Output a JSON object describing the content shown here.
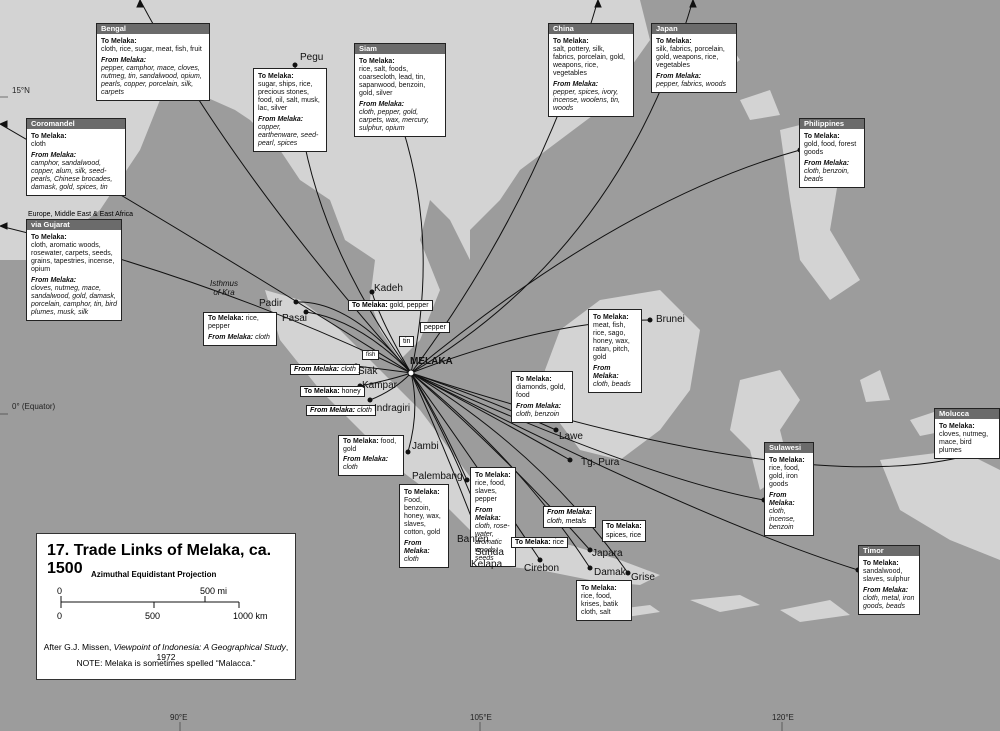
{
  "map": {
    "title": "17. Trade Links of Melaka, ca. 1500",
    "projection": "Azimuthal Equidistant Projection",
    "scale": {
      "mi_zero": "0",
      "mi_mark": "500 mi",
      "km_zero": "0",
      "km_mid": "500",
      "km_end": "1000 km"
    },
    "source": "After G.J. Missen, Viewpoint of Indonesia: A Geographical Study, 1972",
    "source_prefix": "After G.J. Missen, ",
    "source_italic": "Viewpoint of Indonesia: A Geographical Study",
    "source_suffix": ", 1972",
    "note": "NOTE: Melaka is sometimes spelled “Malacca.”",
    "graticule": {
      "lat15": "15°N",
      "equator": "0° (Equator)",
      "lon90": "90°E",
      "lon105": "105°E",
      "lon120": "120°E"
    },
    "hub": "MELAKA",
    "region_label": "Isthmus of Kra",
    "region_label_1": "Isthmus",
    "region_label_2": "of Kra",
    "colors": {
      "sea": "#9c9c9c",
      "land": "#d3d3d3",
      "box_header": "#6b6b6b",
      "route": "#111111"
    }
  },
  "boxes": {
    "bengal": {
      "name": "Bengal",
      "to_label": "To Melaka:",
      "to": "cloth, rice, sugar, meat, fish, fruit",
      "from_label": "From Melaka:",
      "from": "pepper, camphor, mace, cloves, nutmeg, tin, sandalwood, opium, pearls, copper, porcelain, silk, carpets"
    },
    "coromandel": {
      "name": "Coromandel",
      "to_label": "To Melaka:",
      "to": "cloth",
      "from_label": "From Melaka:",
      "from": "camphor, sandalwood, copper, alum, silk, seed-pearls, Chinese brocades, damask, gold, spices, tin"
    },
    "gujarat": {
      "name_top": "Europe, Middle East & East Africa",
      "name": "via Gujarat",
      "to_label": "To Melaka:",
      "to": "cloth, aromatic woods, rosewater, carpets, seeds, grains, tapestries, incense, opium",
      "from_label": "From Melaka:",
      "from": "cloves, nutmeg, mace, sandalwood, gold, damask, porcelain, camphor, tin, bird plumes, musk, silk"
    },
    "pegu": {
      "to_label": "To Melaka:",
      "to": "sugar, ships, rice, precious stones, food, oil, salt, musk, lac, silver",
      "from_label": "From Melaka:",
      "from": "copper, earthenware, seed-pearl, spices"
    },
    "siam": {
      "name": "Siam",
      "to_label": "To Melaka:",
      "to": "rice, salt, foods, coarsecloth, lead, tin, sapanwood, benzoin, gold, silver",
      "from_label": "From Melaka:",
      "from": "cloth, pepper, gold, carpets, wax, mercury, sulphur, opium"
    },
    "china": {
      "name": "China",
      "to_label": "To Melaka:",
      "to": "salt, pottery, silk, fabrics, porcelain, gold, weapons, rice, vegetables",
      "from_label": "From Melaka:",
      "from": "pepper, spices, ivory, incense, woolens, tin, woods"
    },
    "japan": {
      "name": "Japan",
      "to_label": "To Melaka:",
      "to": "silk, fabrics, porcelain, gold, weapons, rice, vegetables",
      "from_label": "From Melaka:",
      "from": "pepper, fabrics, woods"
    },
    "philippines": {
      "name": "Philippines",
      "to_label": "To Melaka:",
      "to": "gold, food, forest goods",
      "from_label": "From Melaka:",
      "from": "cloth, benzoin, beads"
    },
    "brunei": {
      "to_label": "To Melaka:",
      "to": "meat, fish, rice, sago, honey, wax, ratan, pitch, gold",
      "from_label": "From Melaka:",
      "from": "cloth, beads"
    },
    "lawe": {
      "to_label": "To Melaka:",
      "to": "diamonds, gold, food",
      "from_label": "From Melaka:",
      "from": "cloth, benzoin"
    },
    "moluccas": {
      "name": "Molucca",
      "to_label": "To Melaka:",
      "to": "cloves, nutmeg, mace, bird plumes"
    },
    "sulawesi": {
      "name": "Sulawesi",
      "to_label": "To Melaka:",
      "to": "rice, food, gold, iron goods",
      "from_label": "From Melaka:",
      "from": "cloth, incense, benzoin"
    },
    "timor": {
      "name": "Timor",
      "to_label": "To Melaka:",
      "to": "sandalwood, slaves, sulphur",
      "from_label": "From Melaka:",
      "from": "cloth, metal, iron goods, beads"
    },
    "palembang": {
      "to_label": "To Melaka:",
      "to": "Food, benzoin, honey, wax, slaves, cotton, gold",
      "from_label": "From Melaka:",
      "from": "cloth"
    },
    "sunda": {
      "to_label": "To Melaka:",
      "to": "rice, food, slaves, pepper",
      "from_label": "From Melaka:",
      "from": "cloth, rose-water, aromatic woods, seeds"
    },
    "damak": {
      "to_label": "To Melaka:",
      "to": "rice, food, krises, batik cloth, salt"
    },
    "jambi": {
      "to_label": "To Melaka:",
      "to": "food, gold",
      "from_label": "From Melaka:",
      "from": "cloth"
    }
  },
  "small": {
    "kadeh": {
      "to_label": "To Melaka:",
      "to": "gold, pepper"
    },
    "pasai": {
      "to_label": "To Melaka:",
      "to": "rice, pepper",
      "from_label": "From Melaka:",
      "from": "cloth"
    },
    "pepper": "pepper",
    "tin": "tin",
    "fish": "fish",
    "siak": {
      "from_label": "From Melaka:",
      "from": "cloth"
    },
    "kampar": {
      "to_label": "To Melaka:",
      "to": "honey"
    },
    "indragiri": {
      "from_label": "From Melaka:",
      "from": "cloth"
    },
    "cirebon": {
      "to_label": "To Melaka:",
      "to": "rice"
    },
    "japara_from": {
      "from_label": "From Melaka:",
      "from": "cloth, metals"
    },
    "grise": {
      "to_label": "To Melaka:",
      "to": "spices, rice"
    }
  },
  "places": {
    "pegu": "Pegu",
    "kadeh": "Kadeh",
    "padir": "Padir",
    "pasai": "Pasai",
    "siak": "Siak",
    "kampar": "Kampar",
    "indragiri": "Indragiri",
    "jambi": "Jambi",
    "palembang": "Palembang",
    "banten": "Banten",
    "sunda": "Sunda",
    "kelapa": "Kelapa",
    "cirebon": "Cirebon",
    "japara": "Japara",
    "damak": "Damak",
    "grise": "Grise",
    "tgpura": "Tg. Pura",
    "lawe": "Lawe",
    "brunei": "Brunei"
  }
}
